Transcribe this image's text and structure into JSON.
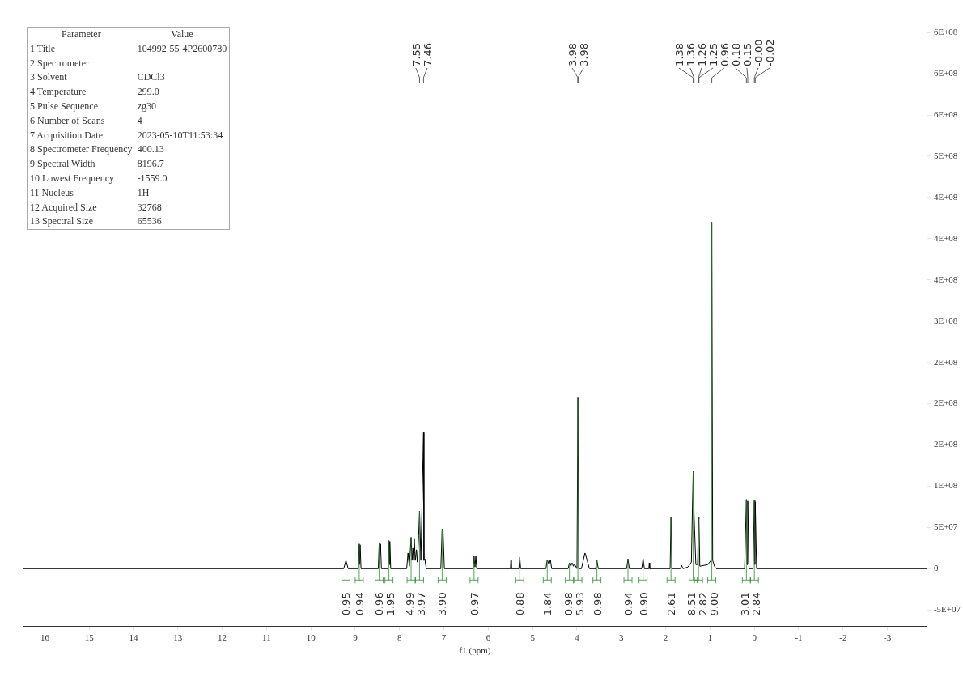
{
  "chart_data": {
    "type": "line",
    "xlabel": "f1 (ppm)",
    "xlim": [
      16.5,
      -3.9
    ],
    "xticks": [
      16,
      15,
      14,
      13,
      12,
      11,
      10,
      9,
      8,
      7,
      6,
      5,
      4,
      3,
      2,
      1,
      0,
      -1,
      -2,
      -3
    ],
    "ylim": [
      -70000000,
      660000000
    ],
    "yticks": [
      {
        "value": -50000000,
        "label": "-5E+07"
      },
      0,
      {
        "value": 50000000,
        "label": "5E+07"
      },
      {
        "value": 100000000,
        "label": "1E+08"
      },
      {
        "value": 150000000,
        "label": "2E+08"
      },
      {
        "value": 200000000,
        "label": "2E+08"
      },
      {
        "value": 250000000,
        "label": "2E+08"
      },
      {
        "value": 300000000,
        "label": "3E+08"
      },
      {
        "value": 350000000,
        "label": "4E+08"
      },
      {
        "value": 400000000,
        "label": "4E+08"
      },
      {
        "value": 450000000,
        "label": "4E+08"
      },
      {
        "value": 500000000,
        "label": "5E+08"
      },
      {
        "value": 550000000,
        "label": "6E+08"
      },
      {
        "value": 600000000,
        "label": "6E+08"
      },
      {
        "value": 650000000,
        "label": "6E+08"
      }
    ],
    "grid": false,
    "legend": false,
    "marker": "none",
    "line_style": "solid",
    "series": [
      {
        "color": "#000000",
        "x": [
          16.5,
          9.26,
          9.21,
          9.16,
          8.93,
          8.91,
          8.9,
          8.89,
          8.87,
          8.48,
          8.46,
          8.45,
          8.43,
          8.41,
          8.26,
          8.24,
          8.23,
          8.22,
          8.2,
          7.84,
          7.81,
          7.78,
          7.74,
          7.72,
          7.7,
          7.685,
          7.67,
          7.645,
          7.62,
          7.6,
          7.57,
          7.55,
          7.52,
          7.46,
          7.45,
          7.43,
          7.4,
          7.07,
          7.04,
          7.02,
          6.99,
          6.34,
          6.32,
          6.3,
          6.28,
          6.26,
          5.5,
          5.49,
          5.48,
          5.31,
          5.29,
          5.27,
          4.7,
          4.67,
          4.63,
          4.6,
          4.57,
          4.2,
          4.17,
          4.14,
          4.11,
          4.08,
          4.06,
          4.0,
          3.98,
          3.96,
          3.9,
          3.85,
          3.82,
          3.78,
          3.72,
          3.58,
          3.55,
          3.52,
          2.88,
          2.85,
          2.82,
          2.54,
          2.51,
          2.48,
          2.38,
          2.37,
          2.36,
          1.9,
          1.88,
          1.86,
          1.67,
          1.64,
          1.61,
          1.5,
          1.42,
          1.4,
          1.38,
          1.36,
          1.32,
          1.28,
          1.26,
          1.25,
          1.23,
          1.05,
          0.98,
          0.96,
          0.94,
          0.9,
          0.86,
          0.22,
          0.18,
          0.165,
          0.15,
          0.12,
          0.03,
          0.0,
          -0.01,
          -0.02,
          -0.05,
          -3.9
        ],
        "values": [
          0,
          0,
          10000000,
          0,
          0,
          30000000,
          5000000,
          29000000,
          0,
          0,
          31000000,
          5000000,
          30000000,
          0,
          0,
          34000000,
          5000000,
          33000000,
          0,
          0,
          19000000,
          3000000,
          38000000,
          10000000,
          25000000,
          10000000,
          36000000,
          10000000,
          23000000,
          8000000,
          40000000,
          70000000,
          10000000,
          165000000,
          10000000,
          12000000,
          0,
          0,
          48000000,
          46000000,
          0,
          0,
          15000000,
          2000000,
          15000000,
          0,
          0,
          10000000,
          0,
          0,
          14000000,
          0,
          0,
          11000000,
          5000000,
          11000000,
          0,
          0,
          7000000,
          3000000,
          7000000,
          3000000,
          6000000,
          0,
          208000000,
          0,
          0,
          12000000,
          19000000,
          12000000,
          0,
          0,
          10000000,
          0,
          0,
          12000000,
          0,
          0,
          12000000,
          0,
          0,
          7000000,
          0,
          0,
          62000000,
          0,
          0,
          4000000,
          0,
          2000000,
          8000000,
          67000000,
          118000000,
          65000000,
          5000000,
          5000000,
          63000000,
          60000000,
          3000000,
          5000000,
          10000000,
          420000000,
          10000000,
          3000000,
          0,
          0,
          84000000,
          5000000,
          82000000,
          0,
          0,
          83000000,
          5000000,
          81000000,
          0,
          0
        ]
      }
    ],
    "annotations": [
      "Parameter\tValue",
      "1 Title\t104992-55-4P2600780",
      "2 Spectrometer",
      "3 Solvent\tCDCl3",
      "4 Temperature\t299.0",
      "5 Pulse Sequence\tzg30",
      "6 Number of Scans\t4",
      "7 Acquisition Date\t2023-05-10T11:53:34",
      "8 Spectrometer Frequency\t400.13",
      "9 Spectral Width\t8196.7",
      "10 Lowest Frequency\t-1559.0",
      "11 Nucleus\t1H",
      "12 Acquired Size\t32768",
      "13 Spectral Size\t65536",
      "7.55",
      "7.46",
      "3.98",
      "3.98",
      "1.38",
      "1.36",
      "1.26",
      "1.25",
      "0.96",
      "0.18",
      "0.15",
      "-0.00",
      "-0.02",
      {
        "text": "0.95",
        "x": 9.21,
        "y": 10000000
      },
      {
        "text": "0.94",
        "x": 8.91,
        "y": 30000000
      },
      {
        "text": "0.96",
        "x": 8.46,
        "y": 31000000
      },
      {
        "text": "1.95",
        "x": 8.24,
        "y": 34000000
      },
      {
        "text": "4.99",
        "x": 7.74,
        "y": 38000000
      },
      {
        "text": "3.97",
        "x": 7.55,
        "y": 70000000
      },
      {
        "text": "3.90",
        "x": 7.04,
        "y": 48000000
      },
      {
        "text": "0.97",
        "x": 6.32,
        "y": 15000000
      },
      {
        "text": "0.88",
        "x": 5.29,
        "y": 14000000
      },
      {
        "text": "1.84",
        "x": 4.67,
        "y": 11000000
      },
      {
        "text": "0.98",
        "x": 4.17,
        "y": 7000000
      },
      {
        "text": "5.93",
        "x": 3.98,
        "y": 208000000
      },
      {
        "text": "0.98",
        "x": 3.55,
        "y": 10000000
      },
      {
        "text": "0.94",
        "x": 2.85,
        "y": 12000000
      },
      {
        "text": "0.90",
        "x": 2.51,
        "y": 12000000
      },
      {
        "text": "2.61",
        "x": 1.88,
        "y": 62000000
      },
      {
        "text": "8.51",
        "x": 1.38,
        "y": 118000000
      },
      {
        "text": "2.82",
        "x": 1.26,
        "y": 63000000
      },
      {
        "text": "9.00",
        "x": 0.96,
        "y": 420000000
      },
      {
        "text": "3.01",
        "x": 0.18,
        "y": 84000000
      },
      {
        "text": "2.84",
        "x": 0,
        "y": 83000000
      }
    ]
  }
}
